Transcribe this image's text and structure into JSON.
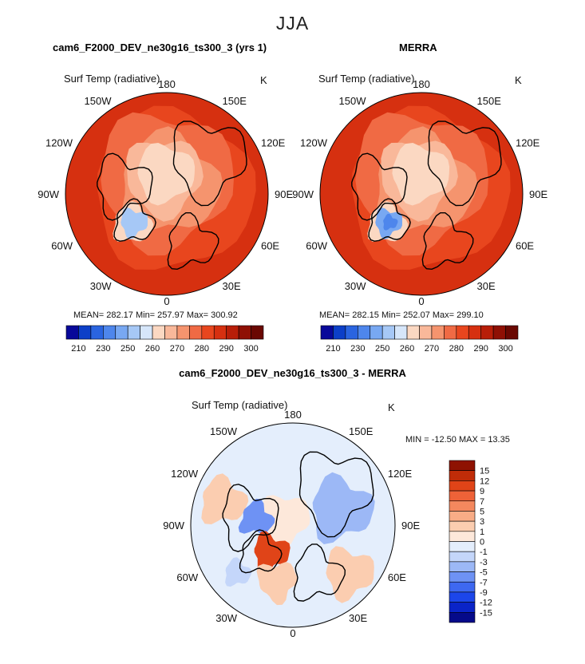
{
  "figure_title": "JJA",
  "panels": [
    {
      "title": "cam6_F2000_DEV_ne30g16_ts300_3 (yrs 1)",
      "variable": "Surf Temp (radiative)",
      "units": "K",
      "stats": "MEAN= 282.17   Min= 257.97   Max= 300.92",
      "lon_labels": {
        "top": "180",
        "bottom": "0",
        "l150": "150W",
        "r150": "150E",
        "l120": "120W",
        "r120": "120E",
        "l90": "90W",
        "r90": "90E",
        "l60": "60W",
        "r60": "60E",
        "l30": "30W",
        "r30": "30E"
      }
    },
    {
      "title": "MERRA",
      "variable": "Surf Temp (radiative)",
      "units": "K",
      "stats": "MEAN= 282.15   Min= 252.07   Max= 299.10",
      "lon_labels": {
        "top": "180",
        "bottom": "0",
        "l150": "150W",
        "r150": "150E",
        "l120": "120W",
        "r120": "120E",
        "l90": "90W",
        "r90": "90E",
        "l60": "60W",
        "r60": "60E",
        "l30": "30W",
        "r30": "30E"
      }
    },
    {
      "title": "cam6_F2000_DEV_ne30g16_ts300_3 - MERRA",
      "variable": "Surf Temp (radiative)",
      "units": "K",
      "stats": "MIN = -12.50 MAX =   13.35",
      "lon_labels": {
        "top": "180",
        "bottom": "0",
        "l150": "150W",
        "r150": "150E",
        "l120": "120W",
        "r120": "120E",
        "l90": "90W",
        "r90": "90E",
        "l60": "60W",
        "r60": "60E",
        "l30": "30W",
        "r30": "30E"
      }
    }
  ],
  "abs_colorbar": {
    "colors": [
      "#08089a",
      "#0c3fc8",
      "#2a64e0",
      "#4e86ec",
      "#78a8f2",
      "#a6c8f6",
      "#d6e6fa",
      "#fbd8c2",
      "#f9b89a",
      "#f5946e",
      "#f06a44",
      "#e8461e",
      "#d63010",
      "#b81e08",
      "#8f1004",
      "#6a0802"
    ],
    "tick_labels": [
      "210",
      "230",
      "250",
      "260",
      "270",
      "280",
      "290",
      "300"
    ]
  },
  "diff_colorbar": {
    "colors": [
      "#050a8a",
      "#0a24c8",
      "#1c46ea",
      "#3e68f0",
      "#6e92f4",
      "#9cb8f6",
      "#c4d6fa",
      "#e4eefc",
      "#fde8da",
      "#fbcdb0",
      "#f8ac86",
      "#f4885e",
      "#ee6238",
      "#e04418",
      "#c02c08",
      "#8e1202"
    ],
    "tick_labels": [
      "15",
      "12",
      "9",
      "7",
      "5",
      "3",
      "1",
      "0",
      "-1",
      "-3",
      "-5",
      "-7",
      "-9",
      "-12",
      "-15"
    ]
  }
}
